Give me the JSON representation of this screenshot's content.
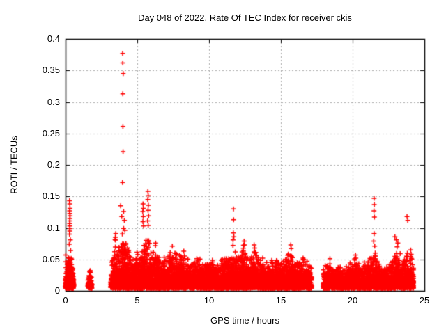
{
  "page": {
    "background": "#ffffff"
  },
  "chart_data": {
    "type": "scatter",
    "title": "Day 048 of 2022, Rate Of TEC Index for receiver ckis",
    "xlabel": "GPS time / hours",
    "ylabel": "ROTI / TECUs",
    "xlim": [
      0,
      25
    ],
    "ylim": [
      0,
      0.4
    ],
    "xticks": [
      0,
      5,
      10,
      15,
      20,
      25
    ],
    "xtick_labels": [
      "0",
      "5",
      "10",
      "15",
      "20",
      "25"
    ],
    "yticks": [
      0,
      0.05,
      0.1,
      0.15,
      0.2,
      0.25,
      0.3,
      0.35,
      0.4
    ],
    "ytick_labels": [
      "0",
      "0.05",
      "0.1",
      "0.15",
      "0.2",
      "0.25",
      "0.3",
      "0.35",
      "0.4"
    ],
    "grid": true,
    "grid_style": "dashed",
    "grid_color": "#a8a8a8",
    "axis_color": "#000000",
    "legend_position": "none",
    "marker": {
      "shape": "plus",
      "color": "#ff0000",
      "size": 7
    },
    "series_name": "ROTI",
    "outlier_points": [
      [
        3.98,
        0.377
      ],
      [
        3.99,
        0.362
      ],
      [
        4.02,
        0.345
      ],
      [
        3.99,
        0.313
      ],
      [
        4.0,
        0.261
      ],
      [
        4.01,
        0.221
      ],
      [
        3.97,
        0.172
      ],
      [
        3.84,
        0.135
      ],
      [
        4.05,
        0.126
      ],
      [
        3.92,
        0.118
      ],
      [
        4.1,
        0.112
      ],
      [
        0.28,
        0.143
      ],
      [
        0.3,
        0.138
      ],
      [
        0.31,
        0.131
      ],
      [
        0.29,
        0.127
      ],
      [
        0.3,
        0.123
      ],
      [
        0.32,
        0.119
      ],
      [
        0.3,
        0.115
      ],
      [
        0.31,
        0.111
      ],
      [
        0.29,
        0.107
      ],
      [
        0.3,
        0.103
      ],
      [
        0.31,
        0.099
      ],
      [
        0.3,
        0.095
      ],
      [
        0.28,
        0.09
      ],
      [
        0.34,
        0.081
      ],
      [
        0.26,
        0.074
      ],
      [
        0.36,
        0.064
      ],
      [
        5.4,
        0.138
      ],
      [
        5.42,
        0.131
      ],
      [
        5.38,
        0.126
      ],
      [
        5.41,
        0.118
      ],
      [
        5.39,
        0.11
      ],
      [
        5.44,
        0.103
      ],
      [
        5.74,
        0.158
      ],
      [
        5.76,
        0.151
      ],
      [
        5.73,
        0.145
      ],
      [
        5.77,
        0.136
      ],
      [
        5.75,
        0.128
      ],
      [
        5.79,
        0.119
      ],
      [
        5.72,
        0.111
      ],
      [
        5.76,
        0.104
      ],
      [
        11.7,
        0.13
      ],
      [
        11.71,
        0.113
      ],
      [
        11.69,
        0.092
      ],
      [
        11.73,
        0.086
      ],
      [
        11.67,
        0.081
      ],
      [
        12.44,
        0.079
      ],
      [
        12.47,
        0.073
      ],
      [
        13.14,
        0.073
      ],
      [
        13.18,
        0.068
      ],
      [
        15.69,
        0.073
      ],
      [
        15.72,
        0.067
      ],
      [
        21.5,
        0.147
      ],
      [
        21.51,
        0.137
      ],
      [
        21.49,
        0.127
      ],
      [
        21.52,
        0.117
      ],
      [
        21.5,
        0.091
      ],
      [
        21.47,
        0.079
      ],
      [
        21.54,
        0.071
      ],
      [
        22.95,
        0.086
      ],
      [
        23.05,
        0.081
      ],
      [
        23.15,
        0.076
      ],
      [
        23.1,
        0.07
      ],
      [
        23.79,
        0.118
      ],
      [
        23.84,
        0.112
      ],
      [
        0.02,
        0.057
      ],
      [
        0.01,
        0.046
      ],
      [
        0.03,
        0.037
      ],
      [
        0.02,
        0.028
      ],
      [
        0.015,
        0.02
      ],
      [
        0.01,
        0.012
      ],
      [
        16.55,
        0.052
      ],
      [
        24.05,
        0.065
      ],
      [
        24.08,
        0.058
      ],
      [
        3.5,
        0.091
      ],
      [
        3.47,
        0.085
      ],
      [
        6.28,
        0.076
      ],
      [
        7.44,
        0.071
      ],
      [
        8.24,
        0.063
      ],
      [
        20.2,
        0.057
      ],
      [
        18.42,
        0.051
      ]
    ],
    "dense_band": {
      "y_floor": 0.004,
      "seed": 48,
      "segments": [
        {
          "x0": 0.0,
          "x1": 0.07,
          "n": 45
        },
        {
          "x0": 0.08,
          "x1": 0.58,
          "n": 420
        },
        {
          "x0": 1.55,
          "x1": 1.85,
          "n": 110
        },
        {
          "x0": 3.15,
          "x1": 17.15,
          "n": 6200
        },
        {
          "x0": 17.95,
          "x1": 24.25,
          "n": 2650
        }
      ],
      "envelope": [
        [
          0.05,
          0.03
        ],
        [
          0.1,
          0.045
        ],
        [
          0.15,
          0.055
        ],
        [
          0.22,
          0.06
        ],
        [
          0.3,
          0.058
        ],
        [
          0.38,
          0.055
        ],
        [
          0.45,
          0.048
        ],
        [
          0.58,
          0.025
        ],
        [
          1.55,
          0.022
        ],
        [
          1.7,
          0.035
        ],
        [
          1.85,
          0.022
        ],
        [
          3.15,
          0.04
        ],
        [
          3.3,
          0.07
        ],
        [
          3.5,
          0.09
        ],
        [
          3.65,
          0.06
        ],
        [
          3.8,
          0.08
        ],
        [
          3.95,
          0.1
        ],
        [
          4.1,
          0.105
        ],
        [
          4.25,
          0.085
        ],
        [
          4.4,
          0.065
        ],
        [
          4.6,
          0.055
        ],
        [
          4.8,
          0.06
        ],
        [
          5.0,
          0.062
        ],
        [
          5.2,
          0.065
        ],
        [
          5.4,
          0.085
        ],
        [
          5.6,
          0.09
        ],
        [
          5.75,
          0.095
        ],
        [
          5.9,
          0.07
        ],
        [
          6.05,
          0.06
        ],
        [
          6.25,
          0.075
        ],
        [
          6.45,
          0.06
        ],
        [
          6.65,
          0.05
        ],
        [
          6.85,
          0.055
        ],
        [
          7.05,
          0.05
        ],
        [
          7.25,
          0.06
        ],
        [
          7.45,
          0.07
        ],
        [
          7.65,
          0.062
        ],
        [
          7.85,
          0.055
        ],
        [
          8.05,
          0.06
        ],
        [
          8.25,
          0.062
        ],
        [
          8.45,
          0.052
        ],
        [
          8.65,
          0.048
        ],
        [
          8.85,
          0.044
        ],
        [
          9.05,
          0.05
        ],
        [
          9.25,
          0.055
        ],
        [
          9.45,
          0.048
        ],
        [
          9.65,
          0.04
        ],
        [
          9.85,
          0.044
        ],
        [
          10.05,
          0.046
        ],
        [
          10.25,
          0.05
        ],
        [
          10.45,
          0.044
        ],
        [
          10.65,
          0.04
        ],
        [
          10.85,
          0.05
        ],
        [
          11.05,
          0.055
        ],
        [
          11.25,
          0.062
        ],
        [
          11.45,
          0.055
        ],
        [
          11.6,
          0.068
        ],
        [
          11.75,
          0.08
        ],
        [
          11.9,
          0.06
        ],
        [
          12.1,
          0.055
        ],
        [
          12.3,
          0.068
        ],
        [
          12.45,
          0.075
        ],
        [
          12.6,
          0.058
        ],
        [
          12.8,
          0.05
        ],
        [
          13.0,
          0.06
        ],
        [
          13.15,
          0.07
        ],
        [
          13.35,
          0.058
        ],
        [
          13.55,
          0.048
        ],
        [
          13.75,
          0.055
        ],
        [
          13.95,
          0.048
        ],
        [
          14.15,
          0.044
        ],
        [
          14.35,
          0.05
        ],
        [
          14.55,
          0.044
        ],
        [
          14.75,
          0.05
        ],
        [
          14.95,
          0.044
        ],
        [
          15.15,
          0.048
        ],
        [
          15.35,
          0.052
        ],
        [
          15.55,
          0.06
        ],
        [
          15.7,
          0.068
        ],
        [
          15.9,
          0.048
        ],
        [
          16.1,
          0.048
        ],
        [
          16.3,
          0.055
        ],
        [
          16.5,
          0.052
        ],
        [
          16.7,
          0.048
        ],
        [
          16.9,
          0.048
        ],
        [
          17.15,
          0.036
        ],
        [
          17.95,
          0.04
        ],
        [
          18.2,
          0.042
        ],
        [
          18.4,
          0.05
        ],
        [
          18.6,
          0.044
        ],
        [
          18.8,
          0.038
        ],
        [
          19.0,
          0.044
        ],
        [
          19.2,
          0.038
        ],
        [
          19.4,
          0.034
        ],
        [
          19.6,
          0.04
        ],
        [
          19.8,
          0.044
        ],
        [
          20.0,
          0.05
        ],
        [
          20.2,
          0.055
        ],
        [
          20.4,
          0.048
        ],
        [
          20.6,
          0.044
        ],
        [
          20.8,
          0.052
        ],
        [
          21.0,
          0.048
        ],
        [
          21.2,
          0.055
        ],
        [
          21.4,
          0.065
        ],
        [
          21.55,
          0.068
        ],
        [
          21.7,
          0.048
        ],
        [
          21.9,
          0.042
        ],
        [
          22.1,
          0.04
        ],
        [
          22.3,
          0.046
        ],
        [
          22.5,
          0.042
        ],
        [
          22.7,
          0.046
        ],
        [
          22.9,
          0.055
        ],
        [
          23.1,
          0.065
        ],
        [
          23.3,
          0.06
        ],
        [
          23.5,
          0.052
        ],
        [
          23.7,
          0.058
        ],
        [
          23.9,
          0.062
        ],
        [
          24.1,
          0.055
        ],
        [
          24.25,
          0.04
        ]
      ]
    }
  }
}
